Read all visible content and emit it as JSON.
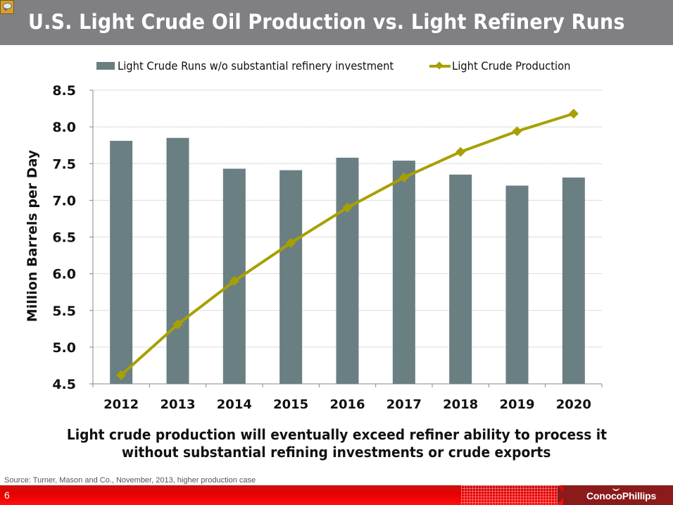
{
  "slide": {
    "title": "U.S. Light Crude Oil Production vs. Light Refinery Runs",
    "caption_line1": "Light crude production will eventually exceed refiner ability to process it",
    "caption_line2": "without substantial refining investments or crude exports",
    "source": "Source: Turner, Mason and Co., November, 2013, higher production case",
    "page_number": "6",
    "logo_text": "ConocoPhillips",
    "icons": {
      "comment": "comment-icon"
    }
  },
  "colors": {
    "title_bar": "#808084",
    "bar": "#6a7f82",
    "line": "#a8a000",
    "footer": "#e60000",
    "footer_logo": "#8b1a1a"
  },
  "chart_data": {
    "type": "bar",
    "title": "U.S. Light Crude Oil Production vs. Light Refinery Runs",
    "xlabel": "",
    "ylabel": "Million Barrels per Day",
    "ylim": [
      4.5,
      8.5
    ],
    "yticks": [
      "4.5",
      "5.0",
      "5.5",
      "6.0",
      "6.5",
      "7.0",
      "7.5",
      "8.0",
      "8.5"
    ],
    "ytick_values": [
      4.5,
      5.0,
      5.5,
      6.0,
      6.5,
      7.0,
      7.5,
      8.0,
      8.5
    ],
    "grid": true,
    "legend_position": "top",
    "categories": [
      "2012",
      "2013",
      "2014",
      "2015",
      "2016",
      "2017",
      "2018",
      "2019",
      "2020"
    ],
    "series": [
      {
        "name": "Light Crude Runs w/o substantial refinery investment",
        "type": "bar",
        "values": [
          7.81,
          7.85,
          7.43,
          7.41,
          7.58,
          7.54,
          7.35,
          7.2,
          7.31
        ]
      },
      {
        "name": "Light Crude Production",
        "type": "line",
        "marker": "diamond",
        "values": [
          4.62,
          5.31,
          5.9,
          6.42,
          6.9,
          7.31,
          7.66,
          7.94,
          8.18
        ]
      }
    ]
  }
}
